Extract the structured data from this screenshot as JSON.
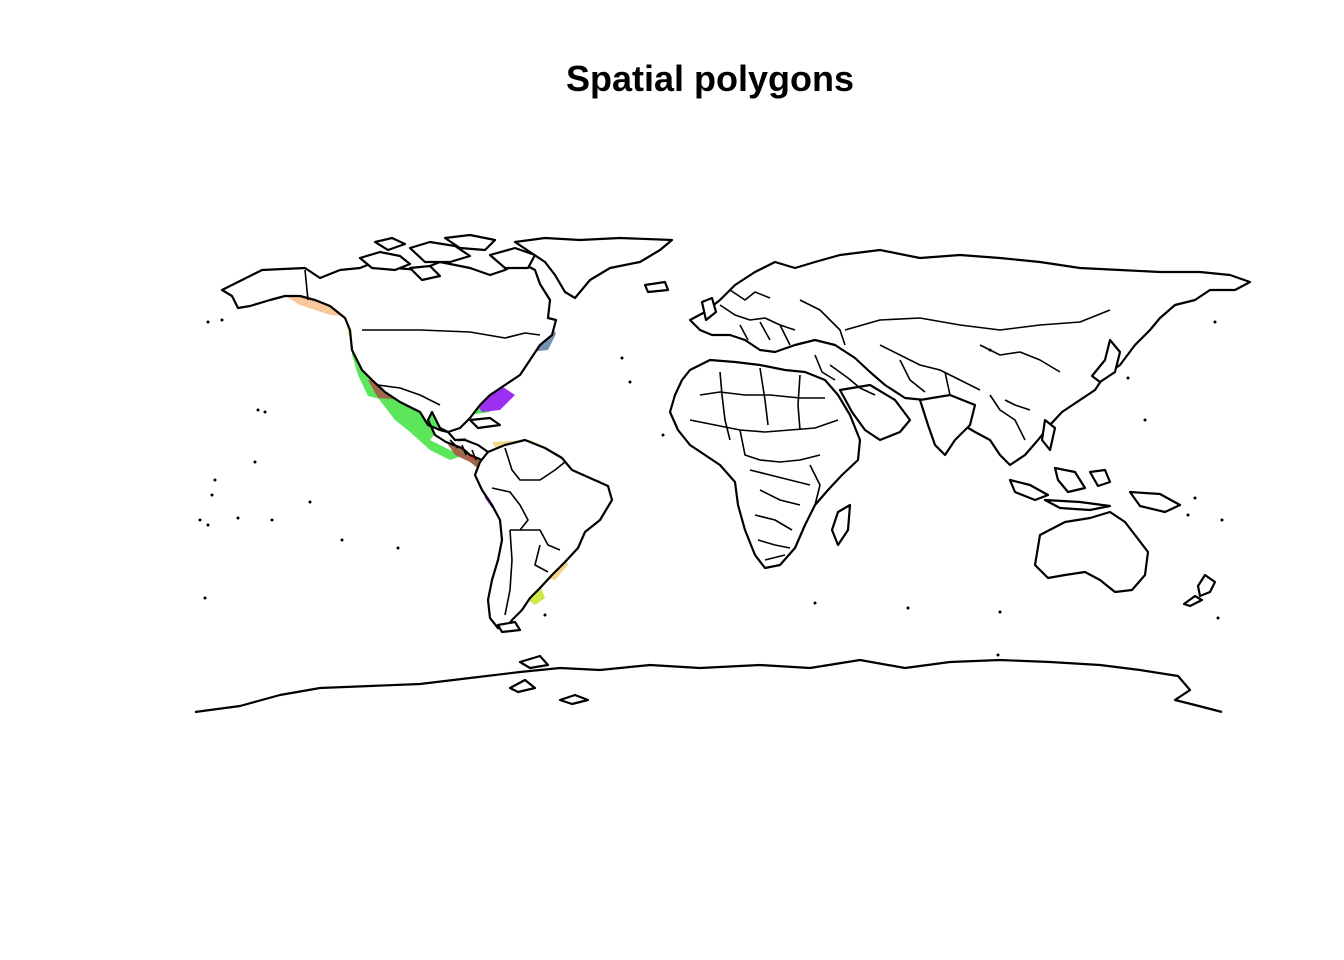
{
  "title": "Spatial polygons",
  "map": {
    "projection": "longlat",
    "extent": {
      "lon": [
        -180,
        180
      ],
      "lat": [
        -90,
        90
      ]
    },
    "land_fill": "#ffffff",
    "outline_color": "#000000",
    "range_colors": {
      "peach": "#f7a06e",
      "pale_orange": "#f9c89d",
      "green": "#5ce65c",
      "yellow_green": "#cde84a",
      "blue": "#5a78f2",
      "violet": "#9b30f0",
      "magenta": "#e64ce6",
      "brown": "#a0684a",
      "tan": "#f5d58a",
      "slate": "#7890b0",
      "red": "#e04040"
    }
  }
}
